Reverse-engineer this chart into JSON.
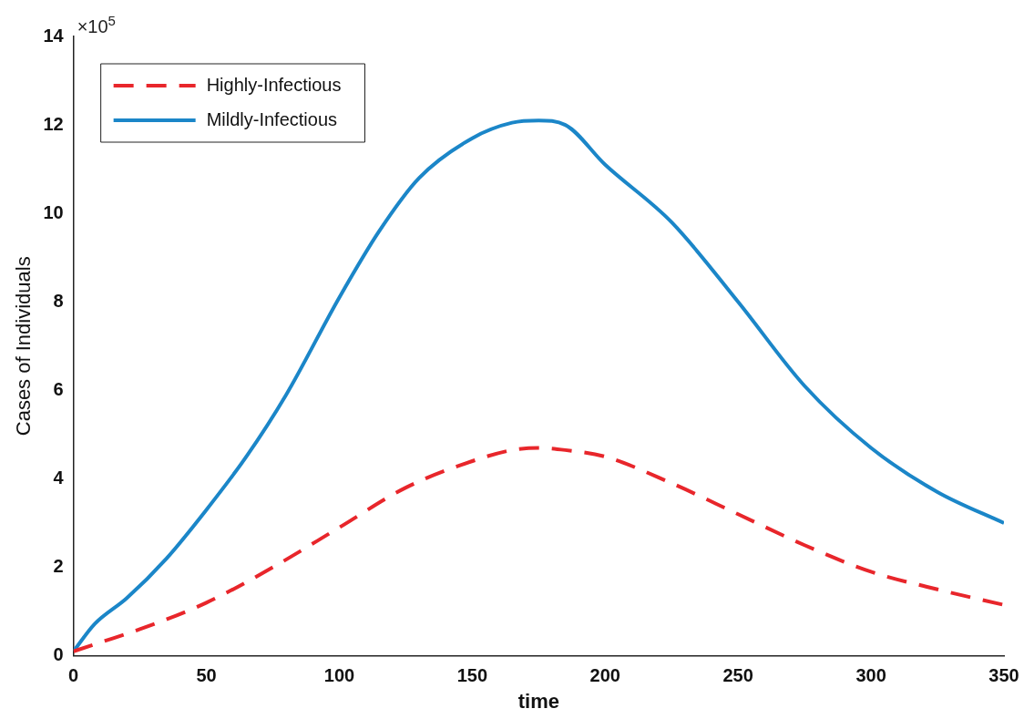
{
  "chart_data": {
    "type": "line",
    "xlabel": "time",
    "ylabel": "Cases of Individuals",
    "annotations": [
      "×10$^{5}$"
    ],
    "xlim": [
      0,
      350
    ],
    "xticks": [
      0,
      50,
      100,
      150,
      200,
      250,
      300,
      350
    ],
    "ylim": [
      0,
      14
    ],
    "yticks": [
      0,
      2,
      4,
      6,
      8,
      10,
      12,
      14
    ],
    "grid": false,
    "legend": "top left",
    "marker": "none",
    "series": [
      {
        "name": "Highly-Infectious",
        "color": "#e8262b",
        "line_style": "dashed",
        "x": [
          0,
          10,
          25,
          50,
          75,
          100,
          125,
          150,
          165,
          175,
          185,
          200,
          225,
          250,
          275,
          300,
          325,
          350
        ],
        "values": [
          0.1,
          0.3,
          0.6,
          1.2,
          2.0,
          2.9,
          3.8,
          4.4,
          4.65,
          4.7,
          4.65,
          4.5,
          3.9,
          3.2,
          2.5,
          1.9,
          1.5,
          1.15
        ]
      },
      {
        "name": "Mildly-Infectious",
        "color": "#1b86c8",
        "line_style": "solid",
        "x": [
          0,
          8,
          20,
          35,
          50,
          65,
          80,
          100,
          115,
          130,
          150,
          165,
          175,
          185,
          200,
          225,
          250,
          275,
          300,
          325,
          350
        ],
        "values": [
          0.1,
          0.72,
          1.3,
          2.2,
          3.3,
          4.5,
          5.9,
          8.1,
          9.6,
          10.8,
          11.7,
          12.05,
          12.1,
          12.0,
          11.1,
          9.8,
          8.0,
          6.1,
          4.7,
          3.7,
          3.0
        ]
      }
    ]
  }
}
